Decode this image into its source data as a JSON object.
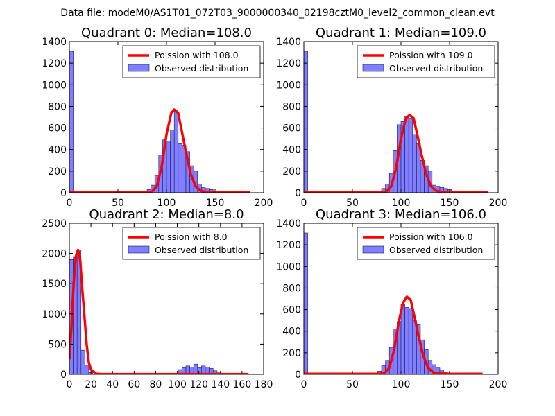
{
  "suptitle": "Data file: modeM0/AS1T01_072T03_9000000340_02198cztM0_level2_common_clean.evt",
  "colors": {
    "bar_fill": "#7f7fff",
    "bar_edge": "#1a1a66",
    "curve": "#ff0000",
    "legend_edge": "#000000"
  },
  "chart_data": [
    {
      "type": "bar",
      "title": "Quadrant 0: Median=108.0",
      "xlim": [
        0,
        200
      ],
      "ylim": [
        0,
        1400
      ],
      "xticks": [
        "0",
        "50",
        "100",
        "150",
        "200"
      ],
      "yticks": [
        "0",
        "200",
        "400",
        "600",
        "800",
        "1000",
        "1200",
        "1400"
      ],
      "series": [
        {
          "name": "Poission with 108.0",
          "kind": "line",
          "x": [
            0,
            80,
            85,
            90,
            95,
            100,
            105,
            108,
            112,
            116,
            120,
            125,
            130,
            135,
            140,
            150,
            186
          ],
          "y": [
            5,
            5,
            10,
            60,
            240,
            540,
            740,
            770,
            740,
            560,
            380,
            170,
            60,
            20,
            8,
            5,
            5
          ]
        },
        {
          "name": "Observed distribution",
          "kind": "hist",
          "x": [
            0,
            76,
            80,
            84,
            88,
            92,
            96,
            100,
            104,
            108,
            112,
            116,
            120,
            124,
            128,
            132,
            136,
            140,
            144,
            148,
            152,
            156,
            160
          ],
          "y": [
            1310,
            10,
            30,
            70,
            160,
            350,
            490,
            470,
            580,
            760,
            460,
            440,
            380,
            250,
            200,
            80,
            50,
            40,
            30,
            10,
            5,
            5,
            3
          ]
        }
      ]
    },
    {
      "type": "bar",
      "title": "Quadrant 1: Median=109.0",
      "xlim": [
        0,
        200
      ],
      "ylim": [
        0,
        1400
      ],
      "xticks": [
        "0",
        "50",
        "100",
        "150",
        "200"
      ],
      "yticks": [
        "0",
        "200",
        "400",
        "600",
        "800",
        "1000",
        "1200",
        "1400"
      ],
      "series": [
        {
          "name": "Poission with 109.0",
          "kind": "line",
          "x": [
            0,
            80,
            85,
            90,
            95,
            100,
            105,
            109,
            113,
            117,
            121,
            126,
            131,
            136,
            141,
            150,
            190
          ],
          "y": [
            5,
            5,
            10,
            60,
            230,
            500,
            690,
            720,
            690,
            530,
            360,
            170,
            60,
            20,
            8,
            5,
            5
          ]
        },
        {
          "name": "Observed distribution",
          "kind": "hist",
          "x": [
            0,
            76,
            80,
            84,
            88,
            92,
            96,
            100,
            104,
            108,
            112,
            116,
            120,
            124,
            128,
            132,
            136,
            140,
            144,
            148,
            152,
            156,
            160,
            164
          ],
          "y": [
            1310,
            10,
            40,
            80,
            180,
            390,
            630,
            660,
            710,
            690,
            540,
            460,
            300,
            250,
            200,
            70,
            60,
            50,
            40,
            30,
            10,
            5,
            3,
            2
          ]
        }
      ]
    },
    {
      "type": "bar",
      "title": "Quadrant 2: Median=8.0",
      "xlim": [
        0,
        180
      ],
      "ylim": [
        0,
        2500
      ],
      "xticks": [
        "0",
        "20",
        "40",
        "60",
        "80",
        "100",
        "120",
        "140",
        "160",
        "180"
      ],
      "yticks": [
        "0",
        "500",
        "1000",
        "1500",
        "2000",
        "2500"
      ],
      "series": [
        {
          "name": "Poission with 8.0",
          "kind": "line",
          "x": [
            0,
            2,
            4,
            6,
            8,
            10,
            12,
            14,
            16,
            18,
            20,
            25,
            30,
            166
          ],
          "y": [
            250,
            800,
            1500,
            1950,
            2060,
            1900,
            1400,
            950,
            500,
            200,
            80,
            10,
            5,
            5
          ]
        },
        {
          "name": "Observed distribution",
          "kind": "hist",
          "x": [
            0,
            3.6,
            7.2,
            10.8,
            14.4,
            18,
            21.6,
            100.8,
            104.4,
            108,
            111.6,
            115.2,
            118.8,
            122.4,
            126,
            129.6,
            133.2,
            136.8,
            140.4
          ],
          "y": [
            1900,
            1950,
            2060,
            400,
            140,
            30,
            10,
            80,
            110,
            140,
            120,
            170,
            110,
            140,
            120,
            100,
            60,
            40,
            20
          ]
        }
      ]
    },
    {
      "type": "bar",
      "title": "Quadrant 3: Median=106.0",
      "xlim": [
        0,
        200
      ],
      "ylim": [
        0,
        1400
      ],
      "xticks": [
        "0",
        "50",
        "100",
        "150",
        "200"
      ],
      "yticks": [
        "0",
        "200",
        "400",
        "600",
        "800",
        "1000",
        "1200",
        "1400"
      ],
      "series": [
        {
          "name": "Poission with 106.0",
          "kind": "line",
          "x": [
            0,
            78,
            83,
            88,
            93,
            98,
            102,
            106,
            110,
            114,
            118,
            123,
            128,
            133,
            138,
            150,
            184
          ],
          "y": [
            5,
            5,
            10,
            60,
            230,
            500,
            660,
            720,
            690,
            530,
            360,
            170,
            60,
            20,
            8,
            5,
            5
          ]
        },
        {
          "name": "Observed distribution",
          "kind": "hist",
          "x": [
            0,
            76,
            80,
            84,
            88,
            92,
            96,
            100,
            104,
            108,
            112,
            116,
            120,
            124,
            128,
            132,
            136,
            140,
            144,
            148,
            152
          ],
          "y": [
            1310,
            30,
            80,
            130,
            250,
            420,
            490,
            650,
            620,
            610,
            500,
            460,
            320,
            230,
            130,
            90,
            60,
            40,
            20,
            10,
            5
          ]
        }
      ]
    }
  ]
}
